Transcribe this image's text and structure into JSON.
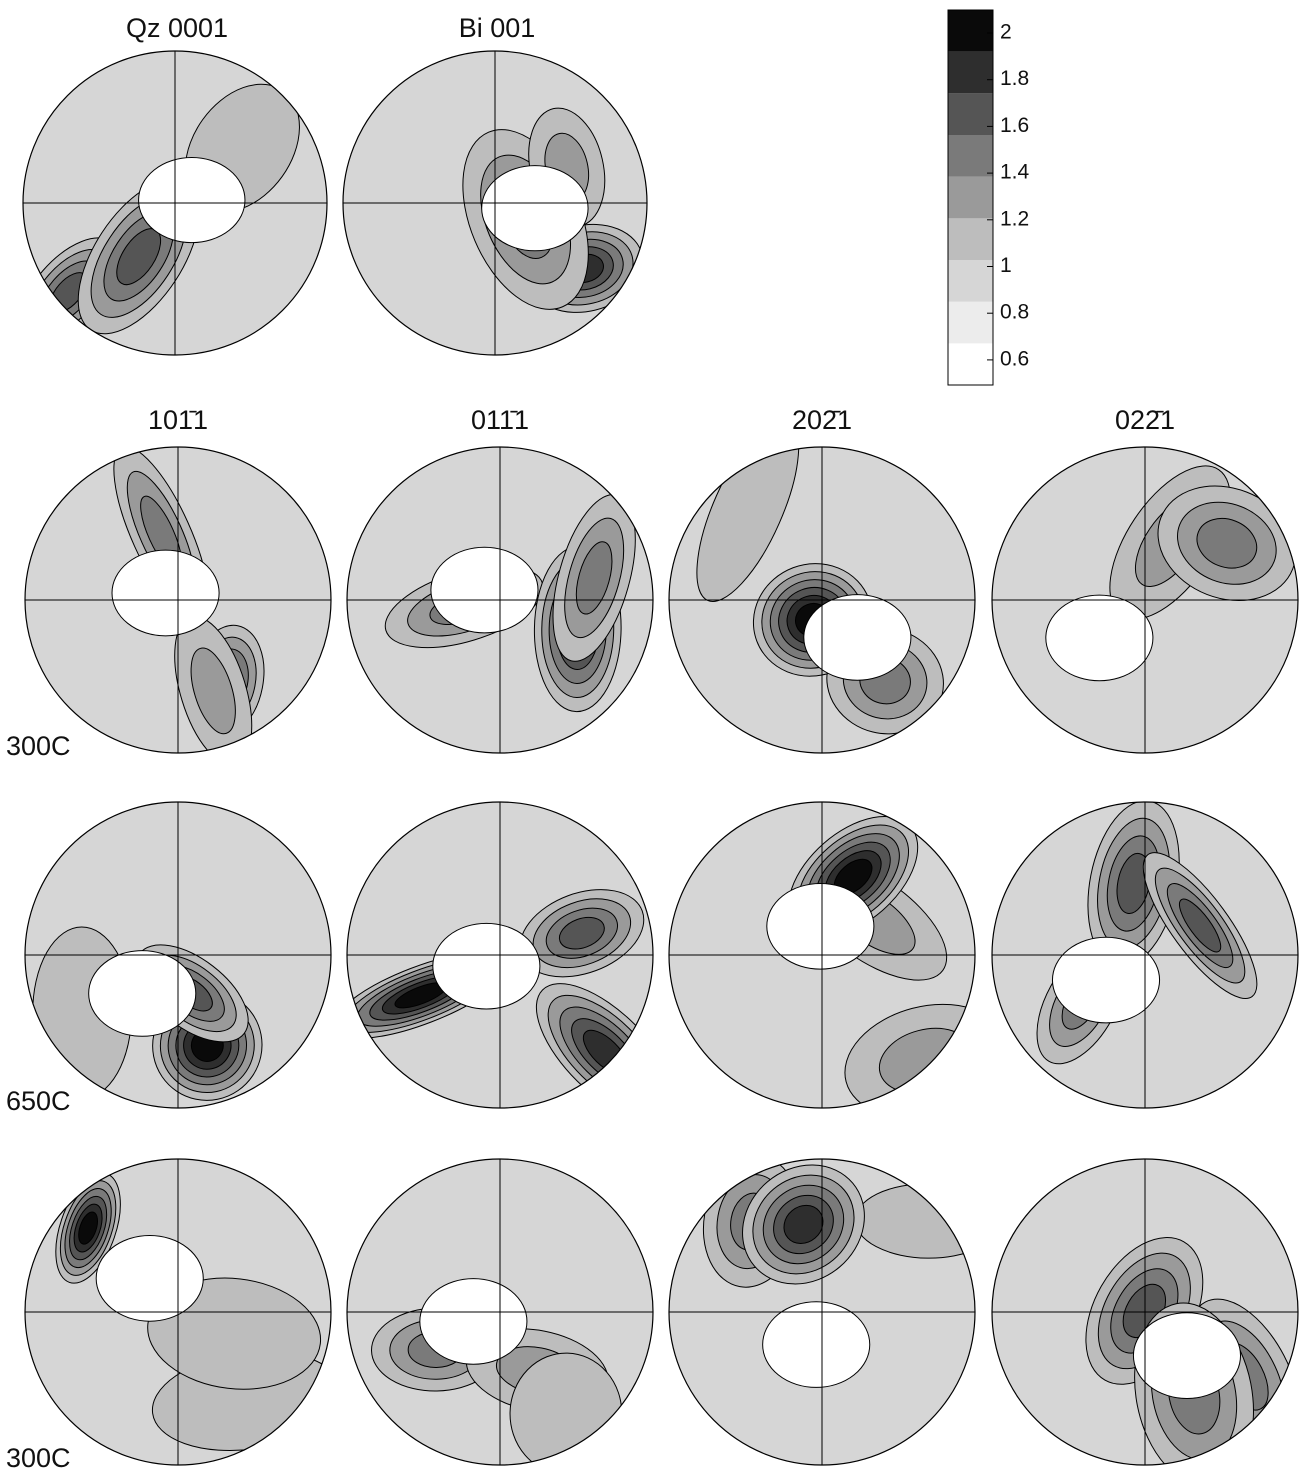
{
  "figure": {
    "top_panels": [
      {
        "title": "Qz 0001"
      },
      {
        "title": "Bi 001"
      }
    ],
    "columns": [
      "101̄1",
      "011̄1",
      "202̄1",
      "022̄1"
    ],
    "rows": [
      "300C",
      "650C",
      "300C"
    ],
    "legend": {
      "levels": [
        2,
        1.8,
        1.6,
        1.4,
        1.2,
        1,
        0.8,
        0.6
      ]
    }
  }
}
